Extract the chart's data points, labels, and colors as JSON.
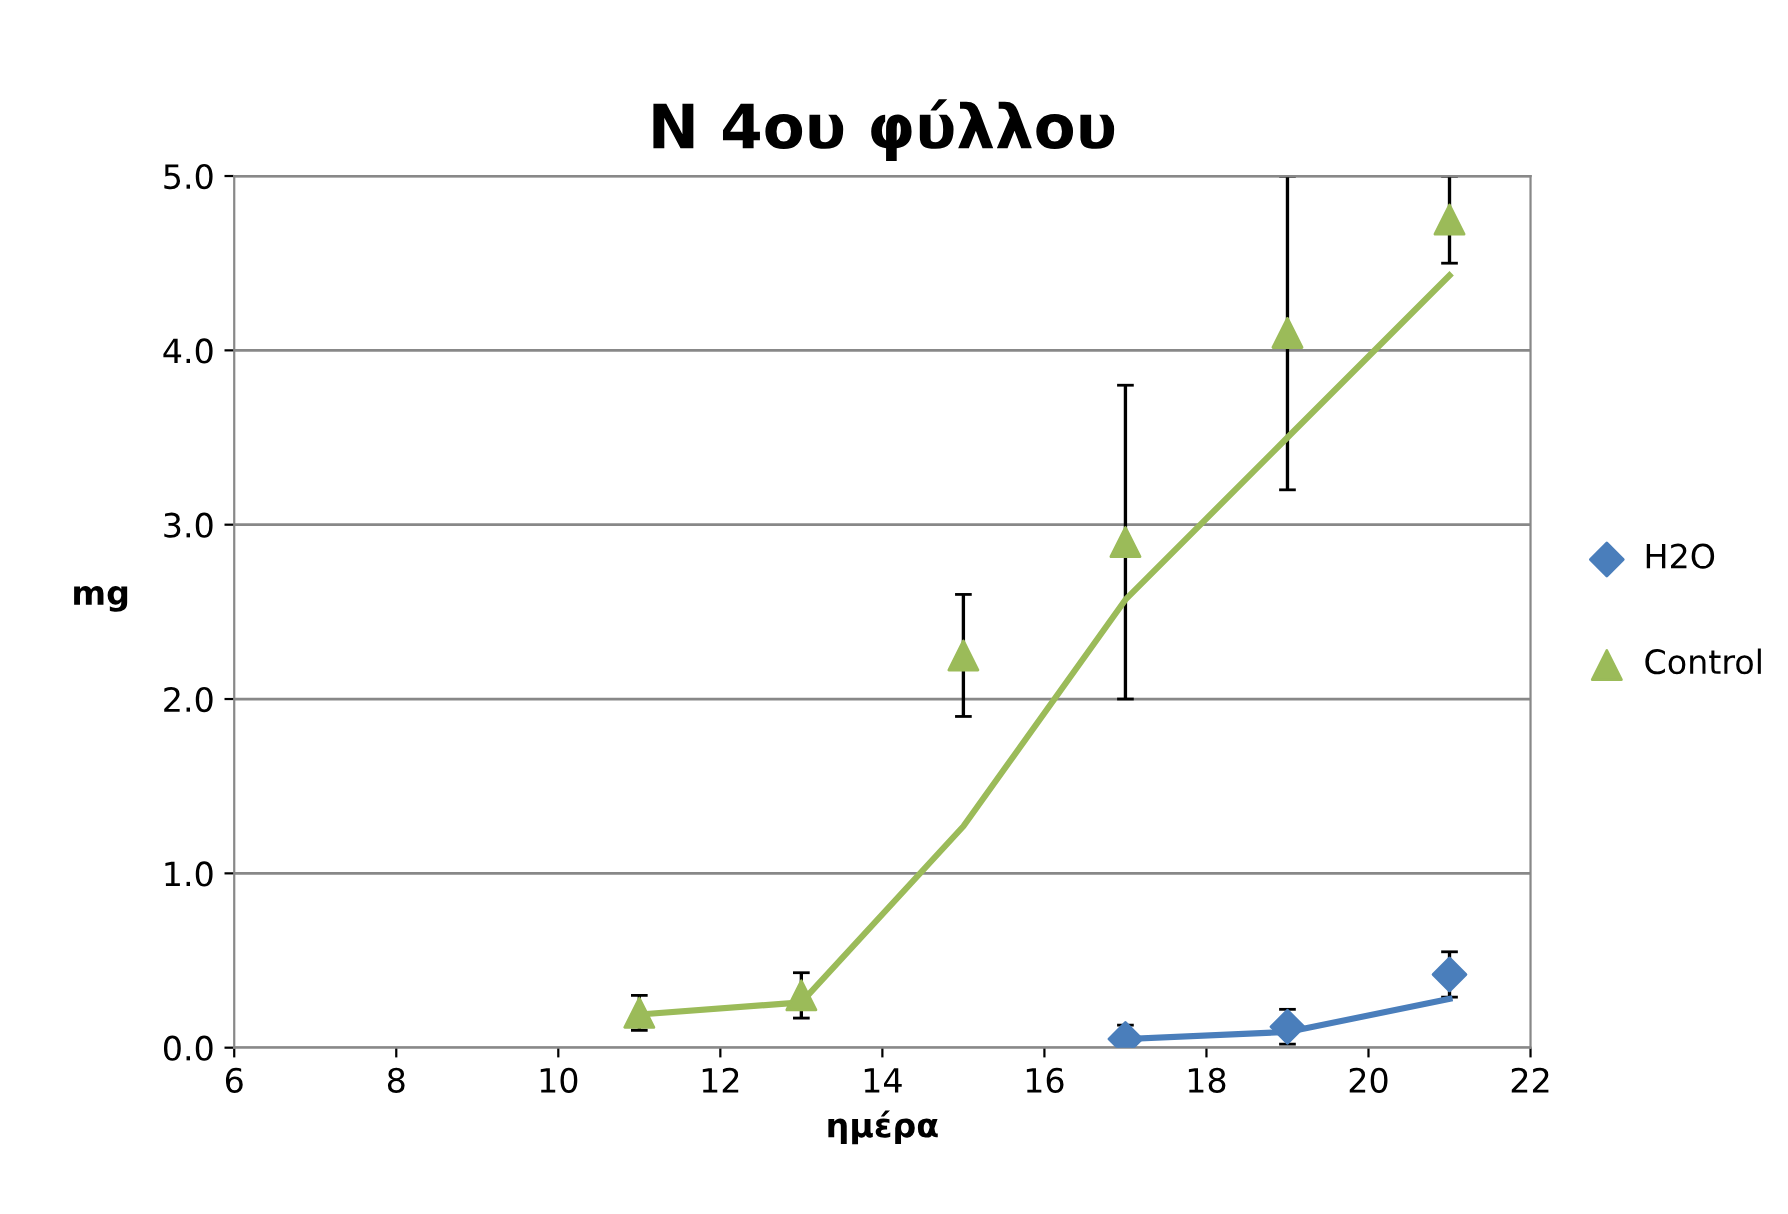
{
  "chart_data": {
    "type": "scatter",
    "title": "N 4ου φύλλου",
    "xlabel": "ημέρα",
    "ylabel": "mg",
    "xlim": [
      6,
      22
    ],
    "xticks": [
      6,
      8,
      10,
      12,
      14,
      16,
      18,
      20,
      22
    ],
    "ylim": [
      0,
      5
    ],
    "yticks": [
      {
        "value": 0,
        "label": "0.0"
      },
      {
        "value": 1,
        "label": "1.0"
      },
      {
        "value": 2,
        "label": "2.0"
      },
      {
        "value": 3,
        "label": "3.0"
      },
      {
        "value": 4,
        "label": "4.0"
      },
      {
        "value": 5,
        "label": "5.0"
      }
    ],
    "grid": "y",
    "legend": "right",
    "series": [
      {
        "name": "H2O",
        "marker": "diamond",
        "color": "#4a7ebb",
        "x": [
          17,
          19,
          21
        ],
        "values": [
          0.05,
          0.12,
          0.42
        ],
        "errors": [
          0.08,
          0.1,
          0.13
        ]
      },
      {
        "name": "Control",
        "marker": "triangle",
        "color": "#9bbb59",
        "x": [
          11,
          13,
          15,
          17,
          19,
          21
        ],
        "values": [
          0.2,
          0.3,
          2.25,
          2.9,
          4.1,
          4.75
        ],
        "errors": [
          0.1,
          0.13,
          0.35,
          0.9,
          0.9,
          0.25
        ]
      },
      {
        "type": "line",
        "marker": "none",
        "color": "#4a7ebb",
        "x": [
          17,
          19,
          21
        ],
        "values": [
          0.05,
          0.09,
          0.28
        ]
      },
      {
        "type": "line",
        "marker": "none",
        "color": "#9bbb59",
        "x": [
          11,
          13,
          15,
          17,
          19,
          21
        ],
        "values": [
          0.19,
          0.26,
          1.27,
          2.57,
          3.5,
          4.43
        ]
      }
    ]
  }
}
